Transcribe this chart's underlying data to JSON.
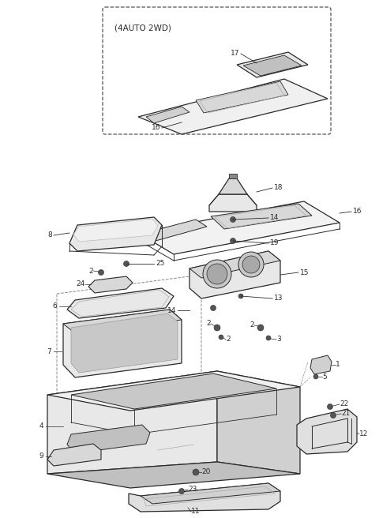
{
  "bg": "#ffffff",
  "lc": "#2a2a2a",
  "lc_light": "#888888",
  "fig_w": 4.8,
  "fig_h": 6.56,
  "dpi": 100
}
